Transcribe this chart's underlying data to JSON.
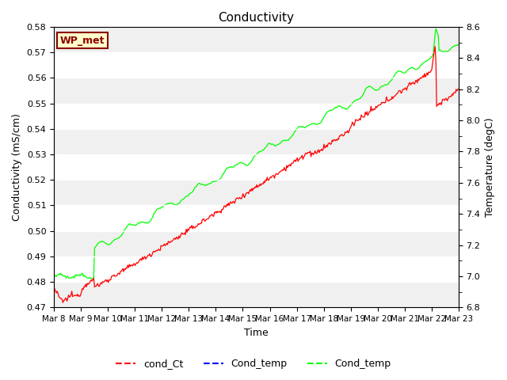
{
  "title": "Conductivity",
  "xlabel": "Time",
  "ylabel_left": "Conductivity (mS/cm)",
  "ylabel_right": "Temperature (degC)",
  "ylim_left": [
    0.47,
    0.58
  ],
  "ylim_right": [
    6.8,
    8.6
  ],
  "yticks_left": [
    0.47,
    0.48,
    0.49,
    0.5,
    0.51,
    0.52,
    0.53,
    0.54,
    0.55,
    0.56,
    0.57,
    0.58
  ],
  "yticks_right": [
    6.8,
    7.0,
    7.2,
    7.4,
    7.6,
    7.8,
    8.0,
    8.2,
    8.4,
    8.6
  ],
  "xlim": [
    0,
    15
  ],
  "xtick_labels": [
    "Mar 8",
    "Mar 9",
    "Mar 10",
    "Mar 11",
    "Mar 12",
    "Mar 13",
    "Mar 14",
    "Mar 15",
    "Mar 16",
    "Mar 17",
    "Mar 18",
    "Mar 19",
    "Mar 20",
    "Mar 21",
    "Mar 22",
    "Mar 23"
  ],
  "band_color_a": "#f0f0f0",
  "band_color_b": "#ffffff",
  "legend_entries": [
    "cond_Ct",
    "Cond_temp",
    "Cond_temp"
  ],
  "legend_colors": [
    "red",
    "blue",
    "lime"
  ],
  "box_label": "WP_met",
  "box_facecolor": "#ffffcc",
  "box_edgecolor": "#8b0000",
  "n_points": 500
}
